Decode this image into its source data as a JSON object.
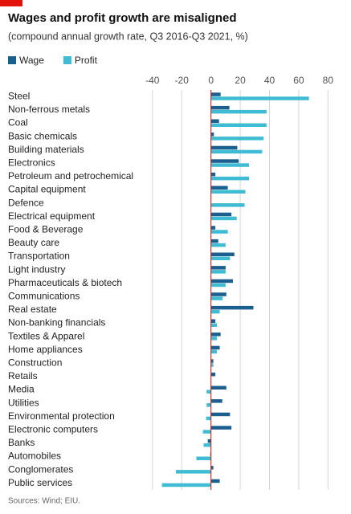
{
  "chart_data": {
    "type": "hbar",
    "title": "Wages and profit growth are misaligned",
    "subtitle": "(compound annual growth rate, Q3 2016-Q3 2021, %)",
    "source": "Sources: Wind; EIU.",
    "categories": [
      "Steel",
      "Non-ferrous metals",
      "Coal",
      "Basic chemicals",
      "Building materials",
      "Electronics",
      "Petroleum and petrochemical",
      "Capital equipment",
      "Defence",
      "Electrical equipment",
      "Food & Beverage",
      "Beauty care",
      "Transportation",
      "Light industry",
      "Pharmaceuticals & biotech",
      "Communications",
      "Real estate",
      "Non-banking financials",
      "Textiles & Apparel",
      "Home appliances",
      "Construction",
      "Retails",
      "Media",
      "Utilities",
      "Environmental protection",
      "Electronic computers",
      "Banks",
      "Automobiles",
      "Conglomerates",
      "Public services"
    ],
    "series": [
      {
        "name": "Wage",
        "color": "#1b5f8f",
        "values": [
          6.6,
          12.6,
          5.5,
          2,
          18,
          19,
          3,
          11.5,
          null,
          14,
          3,
          5,
          16,
          10,
          15,
          10.5,
          29,
          3,
          6.6,
          6,
          1.6,
          3,
          10.5,
          7.7,
          13,
          14,
          -2.2,
          -0.5,
          1.6,
          6
        ]
      },
      {
        "name": "Profit",
        "color": "#3fbcd3",
        "values": [
          67,
          38,
          38,
          36,
          35,
          26,
          26,
          23.5,
          23,
          17.6,
          11.5,
          10,
          13,
          10,
          10,
          8,
          6,
          4,
          4,
          4,
          1.6,
          null,
          -3,
          -3,
          -3.3,
          -5.5,
          -5,
          -10,
          -24,
          -33.5
        ]
      }
    ],
    "xlim": [
      -41,
      82
    ],
    "xticks": [
      -40,
      -20,
      0,
      20,
      40,
      60,
      80
    ],
    "grid": true,
    "zero_color": "#e3120b"
  }
}
